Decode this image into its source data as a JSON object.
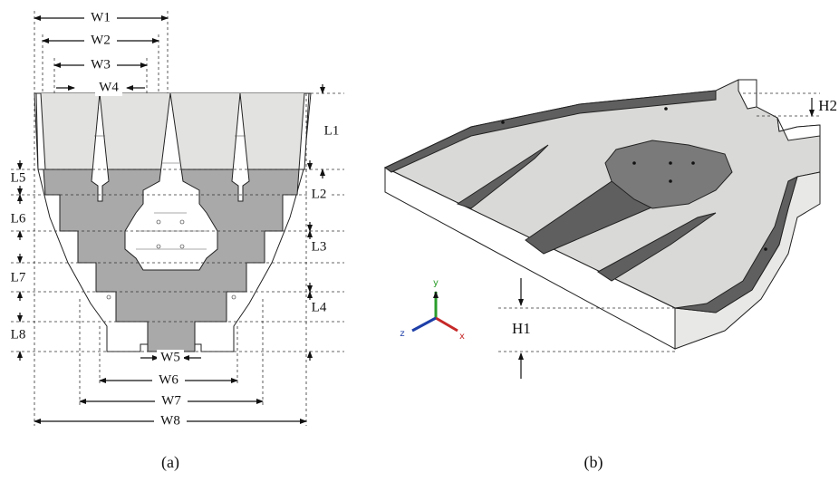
{
  "panel_a": {
    "caption": "(a)",
    "width_labels": [
      "W1",
      "W2",
      "W3",
      "W4",
      "W5",
      "W6",
      "W7",
      "W8"
    ],
    "length_labels": [
      "L1",
      "L2",
      "L3",
      "L4",
      "L5",
      "L6",
      "L7",
      "L8"
    ]
  },
  "panel_b": {
    "caption": "(b)",
    "height_labels": [
      "H1",
      "H2"
    ],
    "axes": [
      "x",
      "y",
      "z"
    ]
  }
}
